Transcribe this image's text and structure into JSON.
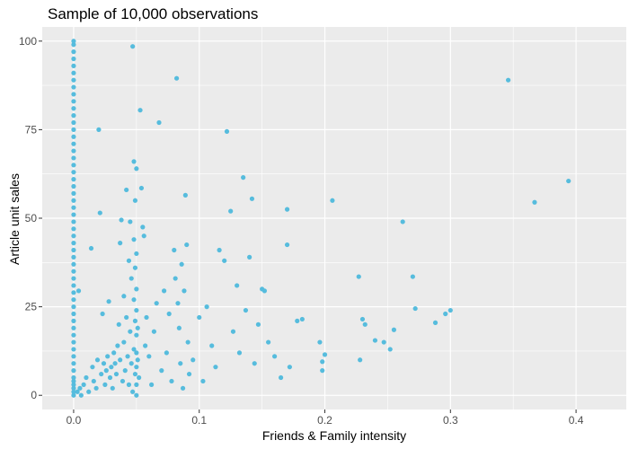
{
  "chart_data": {
    "type": "scatter",
    "title": "Sample of 10,000 observations",
    "xlabel": "Friends & Family intensity",
    "ylabel": "Article unit sales",
    "xlim": [
      -0.025,
      0.44
    ],
    "ylim": [
      -4,
      104
    ],
    "x_ticks": [
      0.0,
      0.1,
      0.2,
      0.3,
      0.4
    ],
    "x_tick_labels": [
      "0.0",
      "0.1",
      "0.2",
      "0.3",
      "0.4"
    ],
    "y_ticks": [
      0,
      25,
      50,
      75,
      100
    ],
    "y_tick_labels": [
      "0",
      "25",
      "50",
      "75",
      "100"
    ],
    "grid": true,
    "background": "#EBEBEB",
    "point_color": "#56BCDD",
    "points": [
      [
        0.0,
        0
      ],
      [
        0.0,
        1
      ],
      [
        0.0,
        2
      ],
      [
        0.0,
        3
      ],
      [
        0.0,
        4
      ],
      [
        0.0,
        5
      ],
      [
        0.0,
        7
      ],
      [
        0.0,
        9
      ],
      [
        0.0,
        11
      ],
      [
        0.0,
        13
      ],
      [
        0.0,
        15
      ],
      [
        0.0,
        17
      ],
      [
        0.0,
        19
      ],
      [
        0.0,
        21
      ],
      [
        0.0,
        23
      ],
      [
        0.0,
        25
      ],
      [
        0.0,
        27
      ],
      [
        0.0,
        29
      ],
      [
        0.0,
        31
      ],
      [
        0.0,
        33
      ],
      [
        0.0,
        35
      ],
      [
        0.0,
        37
      ],
      [
        0.0,
        39
      ],
      [
        0.0,
        41
      ],
      [
        0.0,
        43
      ],
      [
        0.0,
        45
      ],
      [
        0.0,
        47
      ],
      [
        0.0,
        49
      ],
      [
        0.0,
        51
      ],
      [
        0.0,
        53
      ],
      [
        0.0,
        55
      ],
      [
        0.0,
        57
      ],
      [
        0.0,
        59
      ],
      [
        0.0,
        61
      ],
      [
        0.0,
        63
      ],
      [
        0.0,
        65
      ],
      [
        0.0,
        67
      ],
      [
        0.0,
        69
      ],
      [
        0.0,
        71
      ],
      [
        0.0,
        73
      ],
      [
        0.0,
        75
      ],
      [
        0.0,
        77
      ],
      [
        0.0,
        79
      ],
      [
        0.0,
        81
      ],
      [
        0.0,
        83
      ],
      [
        0.0,
        85
      ],
      [
        0.0,
        87
      ],
      [
        0.0,
        89
      ],
      [
        0.0,
        91
      ],
      [
        0.0,
        93
      ],
      [
        0.0,
        95
      ],
      [
        0.0,
        97
      ],
      [
        0.0,
        99
      ],
      [
        0.0,
        100
      ],
      [
        0.003,
        1
      ],
      [
        0.005,
        2
      ],
      [
        0.006,
        0
      ],
      [
        0.004,
        29.5
      ],
      [
        0.008,
        3
      ],
      [
        0.01,
        5
      ],
      [
        0.012,
        1
      ],
      [
        0.014,
        41.5
      ],
      [
        0.015,
        8
      ],
      [
        0.016,
        4
      ],
      [
        0.018,
        2
      ],
      [
        0.019,
        10
      ],
      [
        0.02,
        75
      ],
      [
        0.021,
        51.5
      ],
      [
        0.022,
        6
      ],
      [
        0.023,
        23
      ],
      [
        0.024,
        9
      ],
      [
        0.025,
        3
      ],
      [
        0.026,
        7
      ],
      [
        0.027,
        11
      ],
      [
        0.028,
        26.5
      ],
      [
        0.029,
        5
      ],
      [
        0.03,
        8
      ],
      [
        0.031,
        2
      ],
      [
        0.032,
        12
      ],
      [
        0.033,
        9
      ],
      [
        0.034,
        6
      ],
      [
        0.035,
        14
      ],
      [
        0.036,
        20
      ],
      [
        0.037,
        43
      ],
      [
        0.037,
        10
      ],
      [
        0.038,
        49.5
      ],
      [
        0.039,
        4
      ],
      [
        0.04,
        28
      ],
      [
        0.04,
        15
      ],
      [
        0.041,
        7
      ],
      [
        0.042,
        58
      ],
      [
        0.042,
        22
      ],
      [
        0.043,
        11
      ],
      [
        0.044,
        38
      ],
      [
        0.044,
        3
      ],
      [
        0.045,
        49
      ],
      [
        0.045,
        18
      ],
      [
        0.046,
        9
      ],
      [
        0.046,
        33
      ],
      [
        0.047,
        1
      ],
      [
        0.047,
        98.5
      ],
      [
        0.048,
        66
      ],
      [
        0.048,
        44
      ],
      [
        0.048,
        27
      ],
      [
        0.048,
        13
      ],
      [
        0.049,
        55
      ],
      [
        0.049,
        36
      ],
      [
        0.049,
        21
      ],
      [
        0.049,
        6
      ],
      [
        0.05,
        64
      ],
      [
        0.05,
        40
      ],
      [
        0.05,
        30
      ],
      [
        0.05,
        24
      ],
      [
        0.05,
        17
      ],
      [
        0.05,
        12
      ],
      [
        0.05,
        8
      ],
      [
        0.05,
        3
      ],
      [
        0.05,
        0
      ],
      [
        0.051,
        19
      ],
      [
        0.051,
        10
      ],
      [
        0.052,
        5
      ],
      [
        0.053,
        80.5
      ],
      [
        0.054,
        58.5
      ],
      [
        0.055,
        47.5
      ],
      [
        0.056,
        45
      ],
      [
        0.057,
        14
      ],
      [
        0.058,
        22
      ],
      [
        0.06,
        11
      ],
      [
        0.062,
        3
      ],
      [
        0.064,
        18
      ],
      [
        0.066,
        26
      ],
      [
        0.068,
        77
      ],
      [
        0.07,
        7
      ],
      [
        0.072,
        29.5
      ],
      [
        0.074,
        12
      ],
      [
        0.076,
        23
      ],
      [
        0.078,
        4
      ],
      [
        0.08,
        41
      ],
      [
        0.081,
        33
      ],
      [
        0.082,
        89.5
      ],
      [
        0.083,
        26
      ],
      [
        0.084,
        19
      ],
      [
        0.085,
        9
      ],
      [
        0.086,
        37
      ],
      [
        0.087,
        2
      ],
      [
        0.088,
        29.5
      ],
      [
        0.089,
        56.5
      ],
      [
        0.09,
        42.5
      ],
      [
        0.091,
        15
      ],
      [
        0.092,
        6
      ],
      [
        0.095,
        10
      ],
      [
        0.1,
        22
      ],
      [
        0.103,
        4
      ],
      [
        0.106,
        25
      ],
      [
        0.11,
        14
      ],
      [
        0.113,
        8
      ],
      [
        0.116,
        41
      ],
      [
        0.12,
        38
      ],
      [
        0.122,
        74.5
      ],
      [
        0.125,
        52
      ],
      [
        0.127,
        18
      ],
      [
        0.13,
        31
      ],
      [
        0.132,
        12
      ],
      [
        0.135,
        61.5
      ],
      [
        0.137,
        24
      ],
      [
        0.14,
        39
      ],
      [
        0.142,
        55.5
      ],
      [
        0.144,
        9
      ],
      [
        0.147,
        20
      ],
      [
        0.15,
        30
      ],
      [
        0.152,
        29.5
      ],
      [
        0.155,
        15
      ],
      [
        0.16,
        11
      ],
      [
        0.165,
        5
      ],
      [
        0.17,
        52.5
      ],
      [
        0.17,
        42.5
      ],
      [
        0.172,
        8
      ],
      [
        0.178,
        21
      ],
      [
        0.182,
        21.5
      ],
      [
        0.196,
        15
      ],
      [
        0.198,
        9.5
      ],
      [
        0.2,
        11.5
      ],
      [
        0.198,
        7
      ],
      [
        0.206,
        55
      ],
      [
        0.227,
        33.5
      ],
      [
        0.228,
        10
      ],
      [
        0.23,
        21.5
      ],
      [
        0.232,
        20
      ],
      [
        0.24,
        15.5
      ],
      [
        0.247,
        15
      ],
      [
        0.252,
        13
      ],
      [
        0.255,
        18.5
      ],
      [
        0.262,
        49
      ],
      [
        0.27,
        33.5
      ],
      [
        0.272,
        24.5
      ],
      [
        0.288,
        20.5
      ],
      [
        0.296,
        23
      ],
      [
        0.3,
        24
      ],
      [
        0.346,
        89
      ],
      [
        0.367,
        54.5
      ],
      [
        0.394,
        60.5
      ]
    ]
  }
}
